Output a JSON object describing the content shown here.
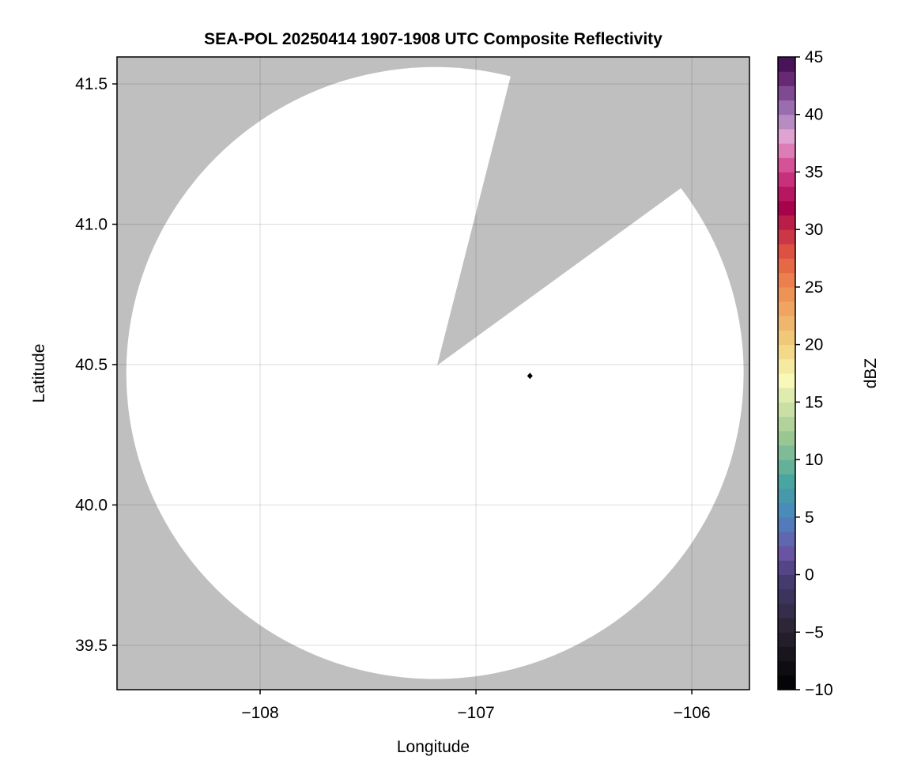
{
  "chart_data": {
    "type": "heatmap",
    "title": "SEA-POL 20250414 1907-1908 UTC Composite Reflectivity",
    "xlabel": "Longitude",
    "ylabel": "Latitude",
    "xlim": [
      -108.663,
      -105.733
    ],
    "ylim": [
      39.342,
      41.596
    ],
    "xticks": [
      -108,
      -107,
      -106
    ],
    "xtick_labels": [
      "−108",
      "−107",
      "−106"
    ],
    "yticks": [
      39.5,
      40.0,
      40.5,
      41.0,
      41.5
    ],
    "ytick_labels": [
      "39.5",
      "40.0",
      "40.5",
      "41.0",
      "41.5"
    ],
    "grid": true,
    "background_color": "#bfbfbf",
    "coverage_color": "#ffffff",
    "radar_coverage": {
      "center": [
        -107.19,
        40.47
      ],
      "lon_radius": 1.43,
      "lat_radius": 1.09,
      "blocked_sector": {
        "apex": [
          -107.18,
          40.497
        ],
        "edge_points": [
          [
            -106.84,
            41.525
          ],
          [
            -106.066,
            41.12
          ]
        ]
      }
    },
    "markers": [
      {
        "lon": -106.75,
        "lat": 40.46,
        "shape": "diamond",
        "color": "#000000"
      }
    ],
    "colorbar": {
      "label": "dBZ",
      "range": [
        -10,
        45
      ],
      "ticks": [
        -10,
        -5,
        0,
        5,
        10,
        15,
        20,
        25,
        30,
        35,
        40,
        45
      ],
      "tick_labels": [
        "−10",
        "−5",
        "0",
        "5",
        "10",
        "15",
        "20",
        "25",
        "30",
        "35",
        "40",
        "45"
      ],
      "bins": 44,
      "color_stops": [
        [
          -10,
          "#000000"
        ],
        [
          -5,
          "#28222f"
        ],
        [
          0,
          "#4a3f78"
        ],
        [
          2,
          "#6a55a6"
        ],
        [
          5,
          "#4a85c0"
        ],
        [
          8,
          "#46a4a0"
        ],
        [
          12,
          "#9cc892"
        ],
        [
          17,
          "#faf9b8"
        ],
        [
          20,
          "#f0d27e"
        ],
        [
          25,
          "#ee8a50"
        ],
        [
          28,
          "#df5442"
        ],
        [
          32,
          "#a6004a"
        ],
        [
          35,
          "#d23c88"
        ],
        [
          38,
          "#e4a4d2"
        ],
        [
          40,
          "#a57fbc"
        ],
        [
          43,
          "#6a2a78"
        ],
        [
          45,
          "#3a0848"
        ]
      ]
    }
  }
}
